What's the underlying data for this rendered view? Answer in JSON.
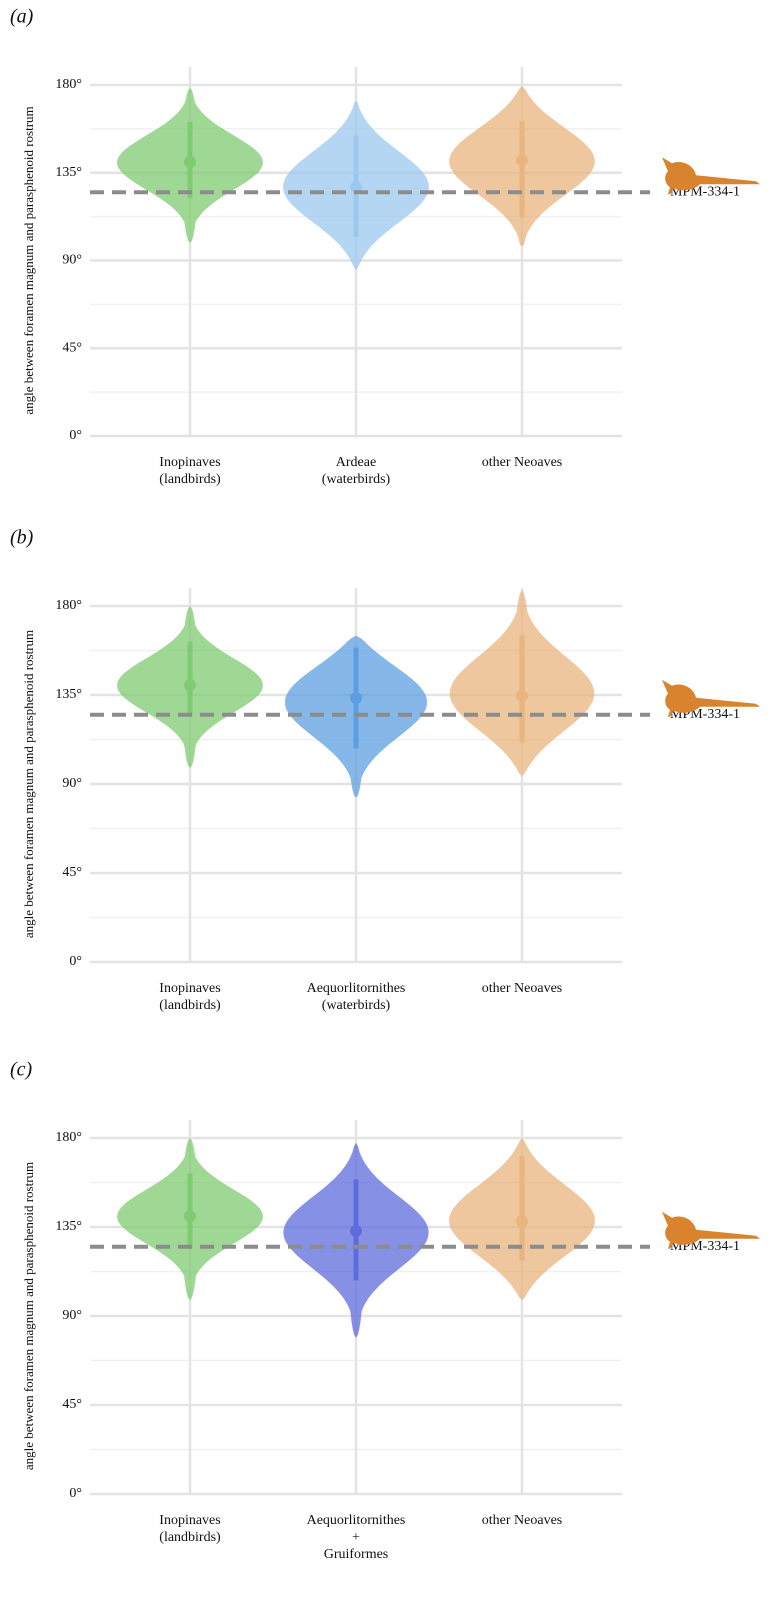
{
  "chart_data": [
    {
      "type": "violin",
      "panel_label": "(a)",
      "y_label": "angle between foramen magnum and parasphenoid rostrum",
      "categories": [
        "Inopinaves\n(landbirds)",
        "Ardeae\n(waterbirds)",
        "other Neoaves"
      ],
      "colors": [
        "#7fcb71",
        "#9cc8ee",
        "#eab47f"
      ],
      "median": [
        140.5,
        127.5,
        141.5
      ],
      "inner_low": [
        122,
        102,
        112
      ],
      "inner_high": [
        161,
        154,
        161.5
      ],
      "min": [
        99,
        85,
        97
      ],
      "max": [
        178.5,
        172,
        179.5
      ],
      "reference": {
        "value": 125,
        "label": "MPM-334-1"
      },
      "ylim": [
        0,
        180
      ],
      "yticks": [
        {
          "value": 0,
          "label": "0°"
        },
        {
          "value": 45,
          "label": "45°"
        },
        {
          "value": 90,
          "label": "90°"
        },
        {
          "value": 135,
          "label": "135°"
        },
        {
          "value": 180,
          "label": "180°"
        }
      ],
      "minor_yticks": [
        22.5,
        67.5,
        112.5,
        157.5
      ],
      "grid": true
    },
    {
      "type": "violin",
      "panel_label": "(b)",
      "y_label": "angle between foramen magnum and parasphenoid rostrum",
      "categories": [
        "Inopinaves\n(landbirds)",
        "Aequorlitornithes\n(waterbirds)",
        "other Neoaves"
      ],
      "colors": [
        "#7fcb71",
        "#5c9fe0",
        "#eab47f"
      ],
      "median": [
        140,
        133.5,
        134.5
      ],
      "inner_low": [
        124,
        108,
        111
      ],
      "inner_high": [
        162,
        159,
        165
      ],
      "min": [
        98,
        83,
        94
      ],
      "max": [
        180,
        165,
        188
      ],
      "reference": {
        "value": 125,
        "label": "MPM-334-1"
      },
      "ylim": [
        0,
        180
      ],
      "yticks": [
        {
          "value": 0,
          "label": "0°"
        },
        {
          "value": 45,
          "label": "45°"
        },
        {
          "value": 90,
          "label": "90°"
        },
        {
          "value": 135,
          "label": "135°"
        },
        {
          "value": 180,
          "label": "180°"
        }
      ],
      "minor_yticks": [
        22.5,
        67.5,
        112.5,
        157.5
      ],
      "grid": true
    },
    {
      "type": "violin",
      "panel_label": "(c)",
      "y_label": "angle between foramen magnum and parasphenoid rostrum",
      "categories": [
        "Inopinaves\n(landbirds)",
        "Aequorlitornithes\n+\nGruiformes",
        "other Neoaves"
      ],
      "colors": [
        "#7fcb71",
        "#5e6bdc",
        "#eab47f"
      ],
      "median": [
        140.5,
        133,
        138
      ],
      "inner_low": [
        124,
        108,
        118
      ],
      "inner_high": [
        162,
        159,
        170.5
      ],
      "min": [
        98,
        79,
        98
      ],
      "max": [
        180,
        177.5,
        180
      ],
      "reference": {
        "value": 125,
        "label": "MPM-334-1"
      },
      "ylim": [
        0,
        180
      ],
      "yticks": [
        {
          "value": 0,
          "label": "0°"
        },
        {
          "value": 45,
          "label": "45°"
        },
        {
          "value": 90,
          "label": "90°"
        },
        {
          "value": 135,
          "label": "135°"
        },
        {
          "value": 180,
          "label": "180°"
        }
      ],
      "minor_yticks": [
        22.5,
        67.5,
        112.5,
        157.5
      ],
      "grid": true
    }
  ]
}
